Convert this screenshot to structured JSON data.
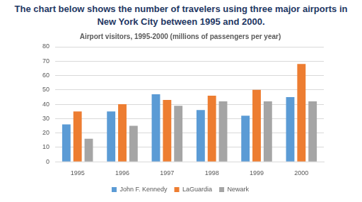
{
  "heading": "The chart below shows the number of travelers using three major airports in New York City between 1995 and 2000.",
  "chart_data": {
    "type": "bar",
    "title": "Airport visitors, 1995-2000 (millions of passengers per year)",
    "categories": [
      "1995",
      "1996",
      "1997",
      "1998",
      "1999",
      "2000"
    ],
    "series": [
      {
        "name": "John F. Kennedy",
        "color": "#5b9bd5",
        "values": [
          26,
          35,
          47,
          36,
          32,
          45
        ]
      },
      {
        "name": "LaGuardia",
        "color": "#ed7d31",
        "values": [
          35,
          40,
          43,
          46,
          50,
          68
        ]
      },
      {
        "name": "Newark",
        "color": "#a5a5a5",
        "values": [
          16,
          25,
          39,
          42,
          42,
          42
        ]
      }
    ],
    "ylim": [
      0,
      80
    ],
    "yticks": [
      0,
      10,
      20,
      30,
      40,
      50,
      60,
      70,
      80
    ],
    "grid": true,
    "legend": "bottom"
  }
}
